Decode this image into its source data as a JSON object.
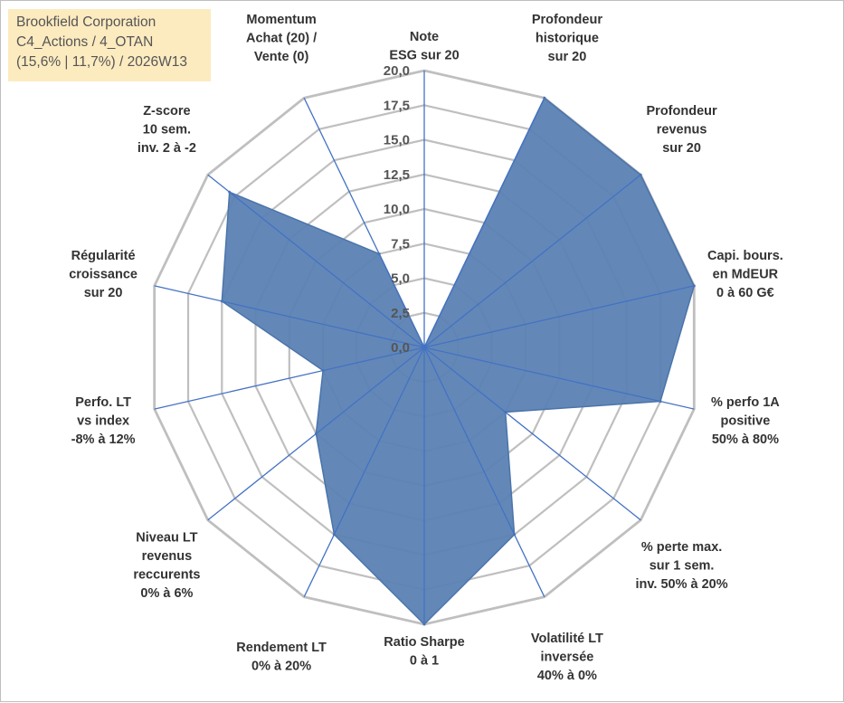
{
  "header": {
    "line1": "Brookfield Corporation",
    "line2": "C4_Actions / 4_OTAN",
    "line3": "(15,6% | 11,7%) / 2026W13"
  },
  "colors": {
    "series_fill": "#5b82b3",
    "series_stroke": "#4a74ab",
    "spoke": "#4472c4",
    "grid": "#bfbfbf",
    "info_bg": "#fdebc0"
  },
  "chart_data": {
    "type": "radar",
    "title": "",
    "rmin": 0,
    "rmax": 20,
    "ticks": [
      "0,0",
      "2,5",
      "5,0",
      "7,5",
      "10,0",
      "12,5",
      "15,0",
      "17,5",
      "20,0"
    ],
    "categories": [
      [
        "Note",
        "ESG sur 20"
      ],
      [
        "Profondeur",
        "historique",
        "sur 20"
      ],
      [
        "Profondeur",
        "revenus",
        "sur 20"
      ],
      [
        "Capi. bours.",
        "en MdEUR",
        "0 à 60 G€"
      ],
      [
        "% perfo 1A",
        "positive",
        "50% à 80%"
      ],
      [
        "% perte max.",
        "sur 1 sem.",
        "inv. 50% à 20%"
      ],
      [
        "Volatilité LT",
        "inversée",
        "40% à 0%"
      ],
      [
        "Ratio Sharpe",
        "0 à 1"
      ],
      [
        "Rendement LT",
        "0% à 20%"
      ],
      [
        "Niveau LT",
        "revenus",
        "reccurents",
        "0% à 6%"
      ],
      [
        "Perfo. LT",
        "vs index",
        "-8% à 12%"
      ],
      [
        "Régularité",
        "croissance",
        "sur 20"
      ],
      [
        "Z-score",
        "10 sem.",
        "inv. 2 à -2"
      ],
      [
        "Momentum",
        "Achat (20) /",
        "Vente (0)"
      ]
    ],
    "series": [
      {
        "name": "Brookfield Corporation",
        "values": [
          0,
          20,
          20,
          20,
          17.5,
          7.5,
          15,
          20,
          15,
          10,
          7.5,
          15,
          18,
          7.5
        ]
      }
    ]
  }
}
